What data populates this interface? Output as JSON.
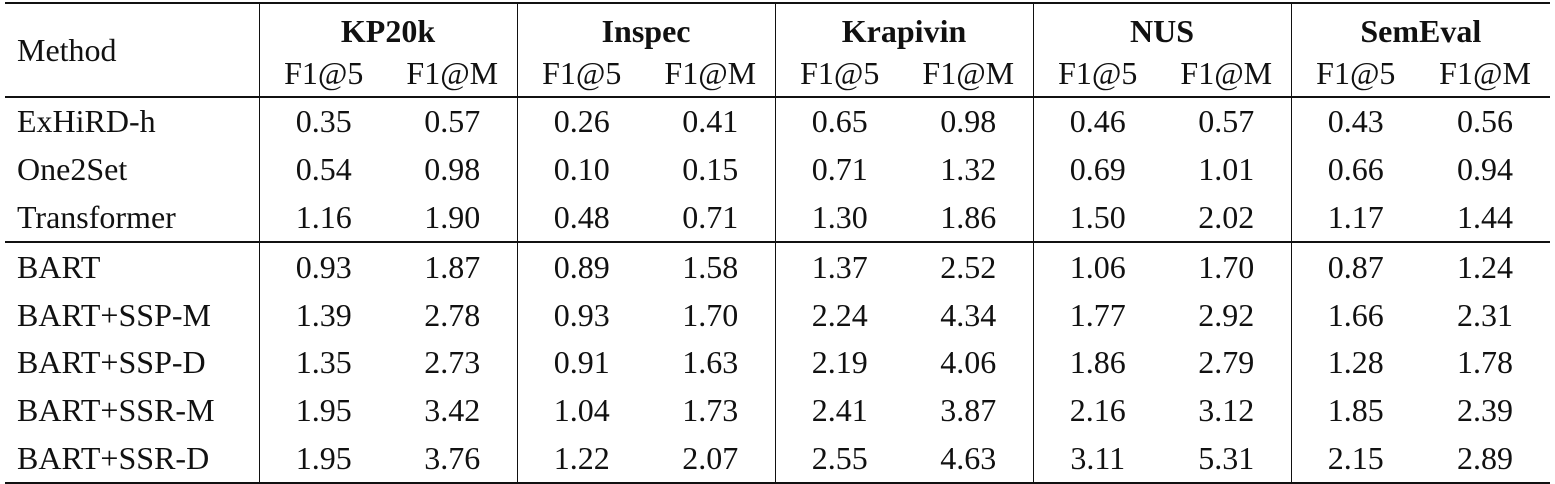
{
  "table": {
    "method_header": "Method",
    "datasets": [
      "KP20k",
      "Inspec",
      "Krapivin",
      "NUS",
      "SemEval"
    ],
    "metrics": [
      "F1@5",
      "F1@M"
    ],
    "group1": [
      {
        "method": "ExHiRD-h",
        "values": [
          "0.35",
          "0.57",
          "0.26",
          "0.41",
          "0.65",
          "0.98",
          "0.46",
          "0.57",
          "0.43",
          "0.56"
        ],
        "bold": [
          false,
          false,
          false,
          false,
          false,
          false,
          false,
          false,
          false,
          false
        ]
      },
      {
        "method": "One2Set",
        "values": [
          "0.54",
          "0.98",
          "0.10",
          "0.15",
          "0.71",
          "1.32",
          "0.69",
          "1.01",
          "0.66",
          "0.94"
        ],
        "bold": [
          false,
          false,
          false,
          false,
          false,
          false,
          false,
          false,
          false,
          false
        ]
      },
      {
        "method": "Transformer",
        "values": [
          "1.16",
          "1.90",
          "0.48",
          "0.71",
          "1.30",
          "1.86",
          "1.50",
          "2.02",
          "1.17",
          "1.44"
        ],
        "bold": [
          false,
          false,
          false,
          false,
          false,
          false,
          false,
          false,
          false,
          false
        ]
      }
    ],
    "group2": [
      {
        "method": "BART",
        "values": [
          "0.93",
          "1.87",
          "0.89",
          "1.58",
          "1.37",
          "2.52",
          "1.06",
          "1.70",
          "0.87",
          "1.24"
        ],
        "bold": [
          false,
          false,
          false,
          false,
          false,
          false,
          false,
          false,
          false,
          false
        ]
      },
      {
        "method": "BART+SSP-M",
        "values": [
          "1.39",
          "2.78",
          "0.93",
          "1.70",
          "2.24",
          "4.34",
          "1.77",
          "2.92",
          "1.66",
          "2.31"
        ],
        "bold": [
          false,
          false,
          false,
          false,
          false,
          false,
          false,
          false,
          false,
          false
        ]
      },
      {
        "method": "BART+SSP-D",
        "values": [
          "1.35",
          "2.73",
          "0.91",
          "1.63",
          "2.19",
          "4.06",
          "1.86",
          "2.79",
          "1.28",
          "1.78"
        ],
        "bold": [
          false,
          false,
          false,
          false,
          false,
          false,
          false,
          false,
          false,
          false
        ]
      },
      {
        "method": "BART+SSR-M",
        "values": [
          "1.95",
          "3.42",
          "1.04",
          "1.73",
          "2.41",
          "3.87",
          "2.16",
          "3.12",
          "1.85",
          "2.39"
        ],
        "bold": [
          true,
          false,
          false,
          false,
          false,
          false,
          false,
          false,
          false,
          false
        ]
      },
      {
        "method": "BART+SSR-D",
        "values": [
          "1.95",
          "3.76",
          "1.22",
          "2.07",
          "2.55",
          "4.63",
          "3.11",
          "5.31",
          "2.15",
          "2.89"
        ],
        "bold": [
          true,
          true,
          true,
          true,
          true,
          true,
          true,
          true,
          true,
          true
        ]
      }
    ]
  }
}
